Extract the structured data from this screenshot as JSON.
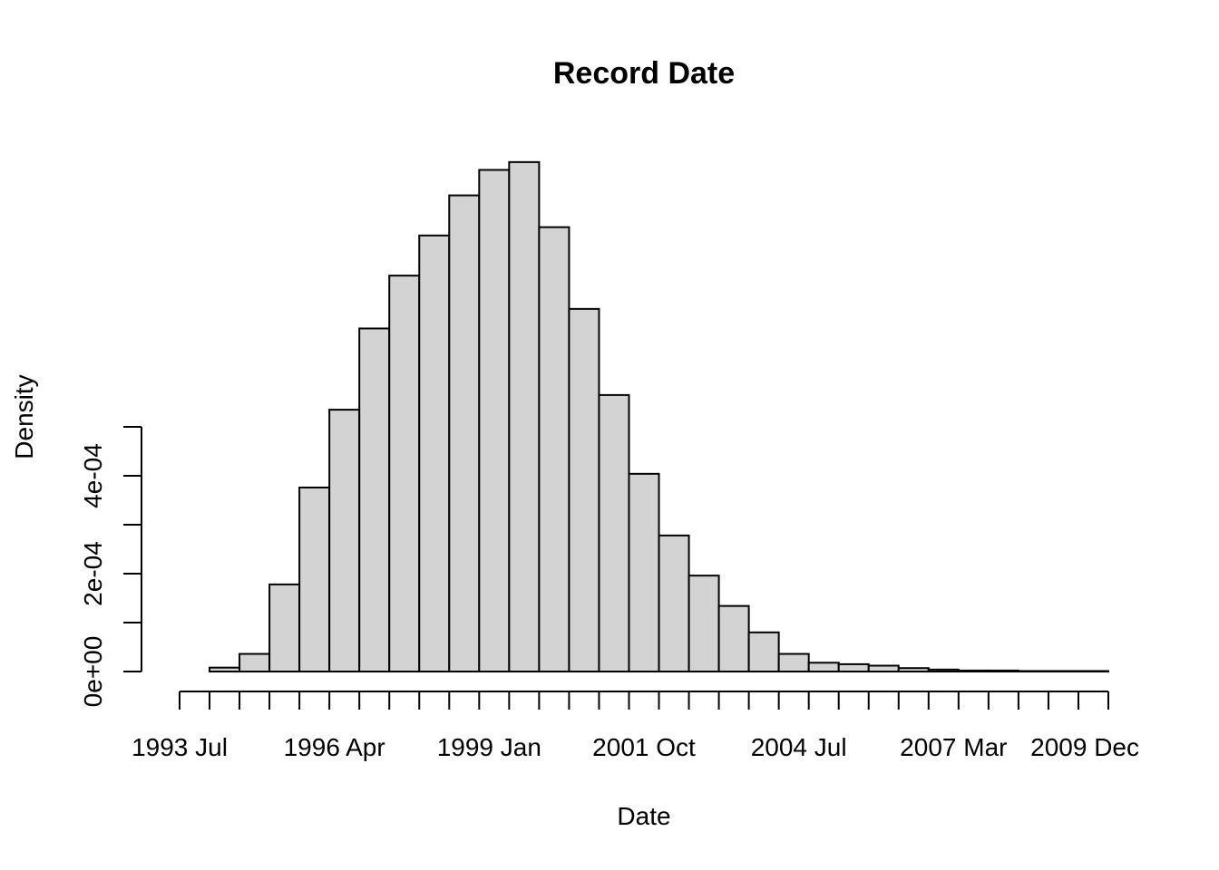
{
  "chart_data": {
    "type": "bar",
    "subtype": "histogram",
    "title": "Record Date",
    "xlabel": "Date",
    "ylabel": "Density",
    "x_tick_labels": [
      "1993 Jul",
      "1996 Apr",
      "1999 Jan",
      "2001 Oct",
      "2004 Jul",
      "2007 Mar",
      "2009 Dec"
    ],
    "x_tick_count": 32,
    "y_tick_labels": [
      "0e+00",
      "2e-04",
      "4e-04"
    ],
    "y_ticks": [
      0,
      0.0001,
      0.0002,
      0.0003,
      0.0004,
      0.0005
    ],
    "ylim": [
      0,
      0.0005
    ],
    "bin_count": 31,
    "values": [
      0.0,
      8e-06,
      3.6e-05,
      0.000178,
      0.000376,
      0.000535,
      0.000701,
      0.000809,
      0.000891,
      0.000973,
      0.001025,
      0.001041,
      0.000908,
      0.000741,
      0.000565,
      0.000404,
      0.000278,
      0.000196,
      0.000134,
      8e-05,
      3.6e-05,
      1.8e-05,
      1.5e-05,
      1.2e-05,
      7e-06,
      4e-06,
      2e-06,
      2e-06,
      1e-06,
      1e-06,
      1e-06
    ],
    "fill_color": "#d3d3d3",
    "stroke_color": "#000000",
    "grid": false,
    "legend": "none"
  }
}
